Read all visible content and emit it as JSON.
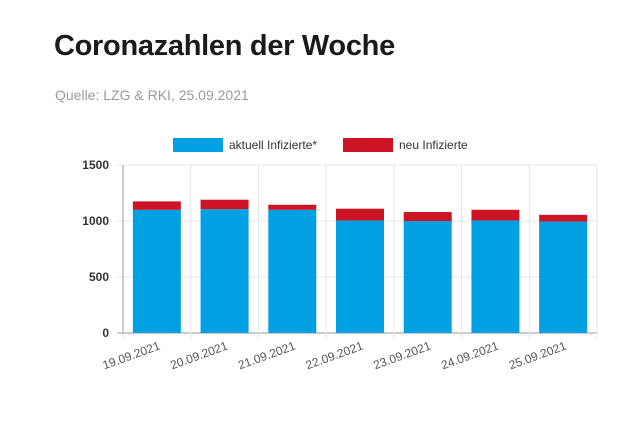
{
  "header": {
    "title": "Coronazahlen der Woche",
    "subtitle": "Quelle: LZG & RKI, 25.09.2021"
  },
  "chart_data": {
    "type": "bar",
    "stacked": true,
    "categories": [
      "19.09.2021",
      "20.09.2021",
      "21.09.2021",
      "22.09.2021",
      "23.09.2021",
      "24.09.2021",
      "25.09.2021"
    ],
    "series": [
      {
        "name": "aktuell Infizierte*",
        "color": "#00a0e3",
        "values": [
          1100,
          1105,
          1100,
          1005,
          1000,
          1005,
          995
        ]
      },
      {
        "name": "neu Infizierte",
        "color": "#cc1424",
        "values": [
          75,
          85,
          45,
          105,
          80,
          95,
          60
        ]
      }
    ],
    "ylim": [
      0,
      1500
    ],
    "yticks": [
      0,
      500,
      1000,
      1500
    ],
    "grid": true,
    "legend_position": "top"
  }
}
